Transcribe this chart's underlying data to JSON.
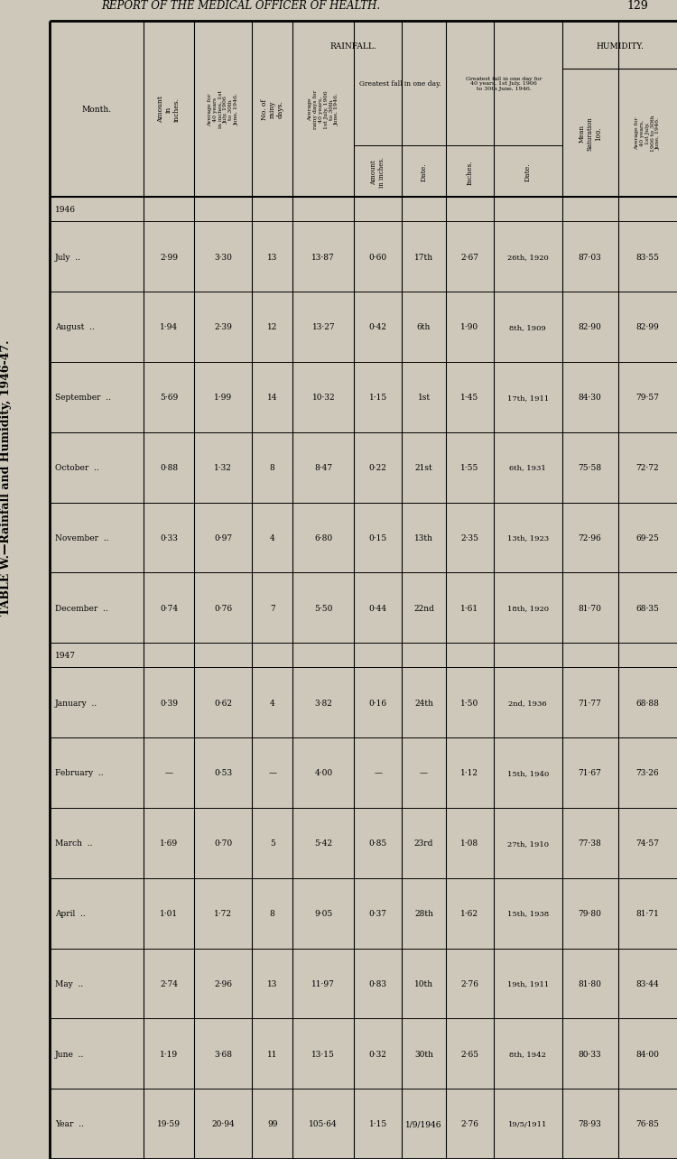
{
  "title": "TABLE W.—Rainfall and Humidity, 1946-47.",
  "page_header": "REPORT OF THE MEDICAL OFFICER OF HEALTH.",
  "page_number": "129",
  "bg_color": "#cdc8ba",
  "table_bg": "#f0ece0",
  "months": [
    "",
    "1946",
    "July",
    "August",
    "September",
    "October",
    "November",
    "December",
    "",
    "1947",
    "January",
    "February",
    "March",
    "April",
    "May",
    "June",
    "",
    "Year"
  ],
  "is_year_label": [
    false,
    true,
    false,
    false,
    false,
    false,
    false,
    false,
    false,
    true,
    false,
    false,
    false,
    false,
    false,
    false,
    false,
    false
  ],
  "is_section_sep": [
    false,
    false,
    false,
    false,
    false,
    false,
    false,
    false,
    true,
    false,
    false,
    false,
    false,
    false,
    false,
    false,
    true,
    false
  ],
  "rainfall_amount": [
    "",
    "",
    "2·99",
    "1·94",
    "5·69",
    "0·88",
    "0·33",
    "0·74",
    "",
    "",
    "0·39",
    "—",
    "1·69",
    "1·01",
    "2·74",
    "1·19",
    "",
    "19·59"
  ],
  "rainfall_avg_40yr": [
    "",
    "",
    "3·30",
    "2·39",
    "1·99",
    "1·32",
    "0·97",
    "0·76",
    "",
    "",
    "0·62",
    "0·53",
    "0·70",
    "1·72",
    "2·96",
    "3·68",
    "",
    "20·94"
  ],
  "rainfall_no_days": [
    "",
    "",
    "13",
    "12",
    "14",
    "8",
    "4",
    "7",
    "",
    "",
    "4",
    "—",
    "5",
    "8",
    "13",
    "11",
    "",
    "99"
  ],
  "rainfall_avg_days": [
    "",
    "",
    "13·87",
    "13·27",
    "10·32",
    "8·47",
    "6·80",
    "5·50",
    "",
    "",
    "3·82",
    "4·00",
    "5·42",
    "9·05",
    "11·97",
    "13·15",
    "",
    "105·64"
  ],
  "gf_amount": [
    "",
    "",
    "0·60",
    "0·42",
    "1·15",
    "0·22",
    "0·15",
    "0·44",
    "",
    "",
    "0·16",
    "—",
    "0·85",
    "0·37",
    "0·83",
    "0·32",
    "",
    "1·15"
  ],
  "gf_date": [
    "",
    "",
    "17th",
    "6th",
    "1st",
    "21st",
    "13th",
    "22nd",
    "",
    "",
    "24th",
    "—",
    "23rd",
    "28th",
    "10th",
    "30th",
    "",
    "1/9/1946"
  ],
  "gf40_inches": [
    "",
    "",
    "2·67",
    "1·90",
    "1·45",
    "1·55",
    "2·35",
    "1·61",
    "",
    "",
    "1·50",
    "1·12",
    "1·08",
    "1·62",
    "2·76",
    "2·65",
    "",
    "2·76"
  ],
  "gf40_date": [
    "",
    "",
    "26th, 1920",
    "8th, 1909",
    "17th, 1911",
    "6th, 1931",
    "13th, 1923",
    "18th, 1920",
    "",
    "",
    "2nd, 1936",
    "15th, 1940",
    "27th, 1910",
    "15th, 1938",
    "19th, 1911",
    "8th, 1942",
    "",
    "19/5/1911"
  ],
  "hum_mean": [
    "",
    "",
    "87·03",
    "82·90",
    "84·30",
    "75·58",
    "72·96",
    "81·70",
    "",
    "",
    "71·77",
    "71·67",
    "77·38",
    "79·80",
    "81·80",
    "80·33",
    "",
    "78·93"
  ],
  "hum_avg": [
    "",
    "",
    "83·55",
    "82·99",
    "79·57",
    "72·72",
    "69·25",
    "68·35",
    "",
    "",
    "68·88",
    "73·26",
    "74·57",
    "81·71",
    "83·44",
    "84·00",
    "",
    "76·85"
  ]
}
